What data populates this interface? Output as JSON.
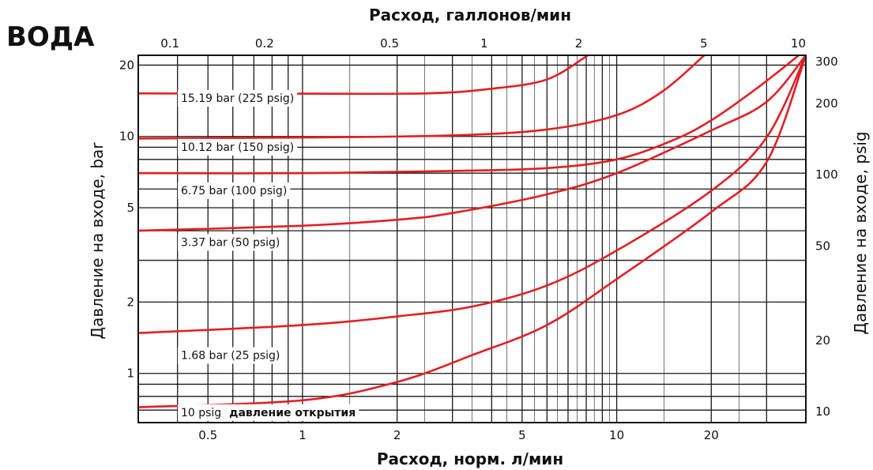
{
  "title": "ВОДА",
  "colors": {
    "curve": "#e31e24",
    "grid": "#1a1a1a",
    "background": "#ffffff"
  },
  "chart_data": {
    "type": "line",
    "title": "ВОДА",
    "xlabel_top": "Расход, галлонов/мин",
    "xlabel_bottom": "Расход, норм. л/мин",
    "ylabel_left": "Давление на входе, bar",
    "ylabel_right": "Давление на входе, psig",
    "x_scale": "log",
    "y_scale": "log",
    "grid": true,
    "xlim_lpm": [
      0.3,
      40
    ],
    "ylim_bar": [
      0.62,
      22
    ],
    "top_ticks_gpm": [
      {
        "label": "0.1",
        "value": 0.1
      },
      {
        "label": "0.2",
        "value": 0.2
      },
      {
        "label": "0.5",
        "value": 0.5
      },
      {
        "label": "1",
        "value": 1
      },
      {
        "label": "2",
        "value": 2
      },
      {
        "label": "5",
        "value": 5
      },
      {
        "label": "10",
        "value": 10
      }
    ],
    "bottom_ticks_lpm": [
      {
        "label": "0.5",
        "value": 0.5
      },
      {
        "label": "1",
        "value": 1
      },
      {
        "label": "2",
        "value": 2
      },
      {
        "label": "5",
        "value": 5
      },
      {
        "label": "10",
        "value": 10
      },
      {
        "label": "20",
        "value": 20
      }
    ],
    "left_ticks_bar": [
      {
        "label": "20",
        "value": 20
      },
      {
        "label": "10",
        "value": 10
      },
      {
        "label": "5",
        "value": 5
      },
      {
        "label": "2",
        "value": 2
      },
      {
        "label": "1",
        "value": 1
      }
    ],
    "right_ticks_psig": [
      {
        "label": "300",
        "value": 300
      },
      {
        "label": "200",
        "value": 200
      },
      {
        "label": "100",
        "value": 100
      },
      {
        "label": "50",
        "value": 50
      },
      {
        "label": "20",
        "value": 20
      },
      {
        "label": "10",
        "value": 10
      }
    ],
    "series": [
      {
        "name": "15.19 bar (225 psig)",
        "label_parts": [
          "15.19 bar (225 psig)"
        ],
        "label_at": [
          0.41,
          14.0
        ],
        "points": [
          [
            0.3,
            15.19
          ],
          [
            1.0,
            15.15
          ],
          [
            2.5,
            15.2
          ],
          [
            4.0,
            15.9
          ],
          [
            6.0,
            17.4
          ],
          [
            8.1,
            22.0
          ]
        ]
      },
      {
        "name": "10.12 bar (150 psig)",
        "label_parts": [
          "10.12 bar (150 psig)"
        ],
        "label_at": [
          0.41,
          8.7
        ],
        "points": [
          [
            0.3,
            9.8
          ],
          [
            1.0,
            9.9
          ],
          [
            3.0,
            10.1
          ],
          [
            6.0,
            10.7
          ],
          [
            10.0,
            12.3
          ],
          [
            14.0,
            15.5
          ],
          [
            19.0,
            22.0
          ]
        ]
      },
      {
        "name": "6.75 bar (100 psig)",
        "label_parts": [
          "6.75 bar (100 psig)"
        ],
        "label_at": [
          0.41,
          5.7
        ],
        "points": [
          [
            0.3,
            7.0
          ],
          [
            1.0,
            7.0
          ],
          [
            3.0,
            7.15
          ],
          [
            6.0,
            7.35
          ],
          [
            10.0,
            8.0
          ],
          [
            15.0,
            9.6
          ],
          [
            20.0,
            11.7
          ],
          [
            28.0,
            16.0
          ],
          [
            38.0,
            22.0
          ]
        ]
      },
      {
        "name": "3.37 bar (50 psig)",
        "label_parts": [
          "3.37 bar (50 psig)"
        ],
        "label_at": [
          0.41,
          3.45
        ],
        "points": [
          [
            0.3,
            4.0
          ],
          [
            1.0,
            4.2
          ],
          [
            2.0,
            4.45
          ],
          [
            3.0,
            4.75
          ],
          [
            6.0,
            5.7
          ],
          [
            10.0,
            7.0
          ],
          [
            20.0,
            10.6
          ],
          [
            30.0,
            14.0
          ],
          [
            40.0,
            22.0
          ]
        ]
      },
      {
        "name": "1.68 bar (25 psig)",
        "label_parts": [
          "1.68 bar (25 psig)"
        ],
        "label_at": [
          0.41,
          1.15
        ],
        "points": [
          [
            0.3,
            1.48
          ],
          [
            1.0,
            1.6
          ],
          [
            2.0,
            1.74
          ],
          [
            3.5,
            1.92
          ],
          [
            6.0,
            2.35
          ],
          [
            10.0,
            3.3
          ],
          [
            20.0,
            5.9
          ],
          [
            30.0,
            9.9
          ],
          [
            40.0,
            22.0
          ]
        ]
      },
      {
        "name": "10 psig давление открытия",
        "label_parts": [
          "10 psig",
          "давление открытия"
        ],
        "label_at": [
          0.41,
          0.66
        ],
        "points": [
          [
            0.3,
            0.72
          ],
          [
            1.0,
            0.77
          ],
          [
            2.0,
            0.92
          ],
          [
            3.5,
            1.2
          ],
          [
            6.0,
            1.6
          ],
          [
            10.0,
            2.5
          ],
          [
            20.0,
            4.8
          ],
          [
            30.0,
            7.8
          ],
          [
            40.0,
            22.0
          ]
        ]
      }
    ]
  }
}
